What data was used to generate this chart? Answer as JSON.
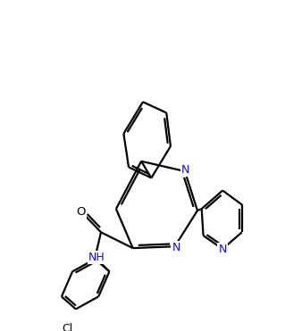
{
  "background_color": "#ffffff",
  "bond_color": "#000000",
  "N_color": "#1010cc",
  "line_width": 1.6,
  "figsize": [
    3.19,
    3.71
  ],
  "dpi": 100,
  "xlim": [
    0,
    10
  ],
  "ylim": [
    0,
    11.6
  ]
}
